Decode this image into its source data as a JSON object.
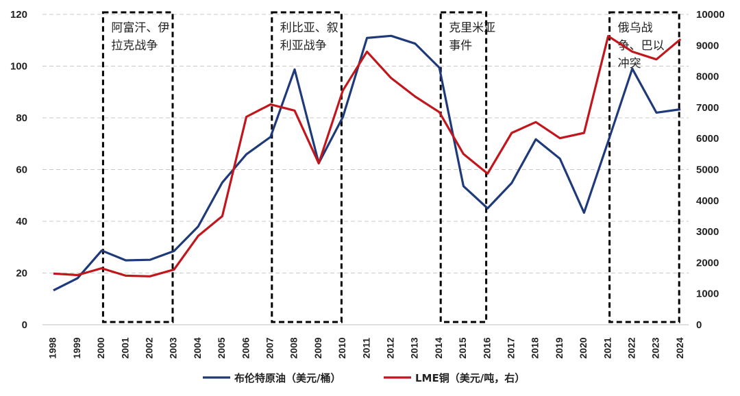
{
  "chart_data": {
    "type": "line",
    "x": [
      "1998",
      "1999",
      "2000",
      "2001",
      "2002",
      "2003",
      "2004",
      "2005",
      "2006",
      "2007",
      "2008",
      "2009",
      "2010",
      "2011",
      "2012",
      "2013",
      "2014",
      "2015",
      "2016",
      "2017",
      "2018",
      "2019",
      "2020",
      "2021",
      "2022",
      "2023",
      "2024"
    ],
    "ylim_left": [
      0,
      120
    ],
    "yticks_left": [
      "0",
      "20",
      "40",
      "60",
      "80",
      "100",
      "120"
    ],
    "ylim_right": [
      0,
      10000
    ],
    "yticks_right": [
      "0",
      "1000",
      "2000",
      "3000",
      "4000",
      "5000",
      "6000",
      "7000",
      "8000",
      "9000",
      "10000"
    ],
    "grid": true,
    "legend_position": "bottom",
    "series": [
      {
        "name": "布伦特原油（美元/桶）",
        "axis": "left",
        "color": "#1f3a7a",
        "values": [
          13.3,
          18.0,
          28.7,
          24.9,
          25.1,
          28.5,
          38.0,
          55.0,
          65.9,
          72.6,
          98.7,
          62.5,
          80.3,
          110.9,
          111.7,
          108.7,
          99.4,
          53.6,
          45.0,
          54.8,
          71.7,
          64.2,
          43.3,
          70.9,
          99.0,
          82.0,
          83.3
        ]
      },
      {
        "name": "LME铜（美元/吨，右）",
        "axis": "right",
        "color": "#c0161c",
        "values": [
          1650,
          1600,
          1820,
          1580,
          1560,
          1780,
          2860,
          3500,
          6700,
          7100,
          6900,
          5200,
          7550,
          8800,
          7950,
          7350,
          6850,
          5500,
          4870,
          6180,
          6530,
          6010,
          6180,
          9300,
          8800,
          8550,
          9200
        ]
      }
    ],
    "annotations": [
      {
        "lines": [
          "阿富汗、伊",
          "拉克战争"
        ],
        "x_start": "2000",
        "x_end": "2003"
      },
      {
        "lines": [
          "利比亚、叙",
          "利亚战争"
        ],
        "x_start": "2007",
        "x_end": "2010"
      },
      {
        "lines": [
          "克里米亚",
          "事件"
        ],
        "x_start": "2014",
        "x_end": "2016"
      },
      {
        "lines": [
          "俄乌战",
          "争、巴以",
          "冲突"
        ],
        "x_start": "2021",
        "x_end": "2024"
      }
    ]
  }
}
